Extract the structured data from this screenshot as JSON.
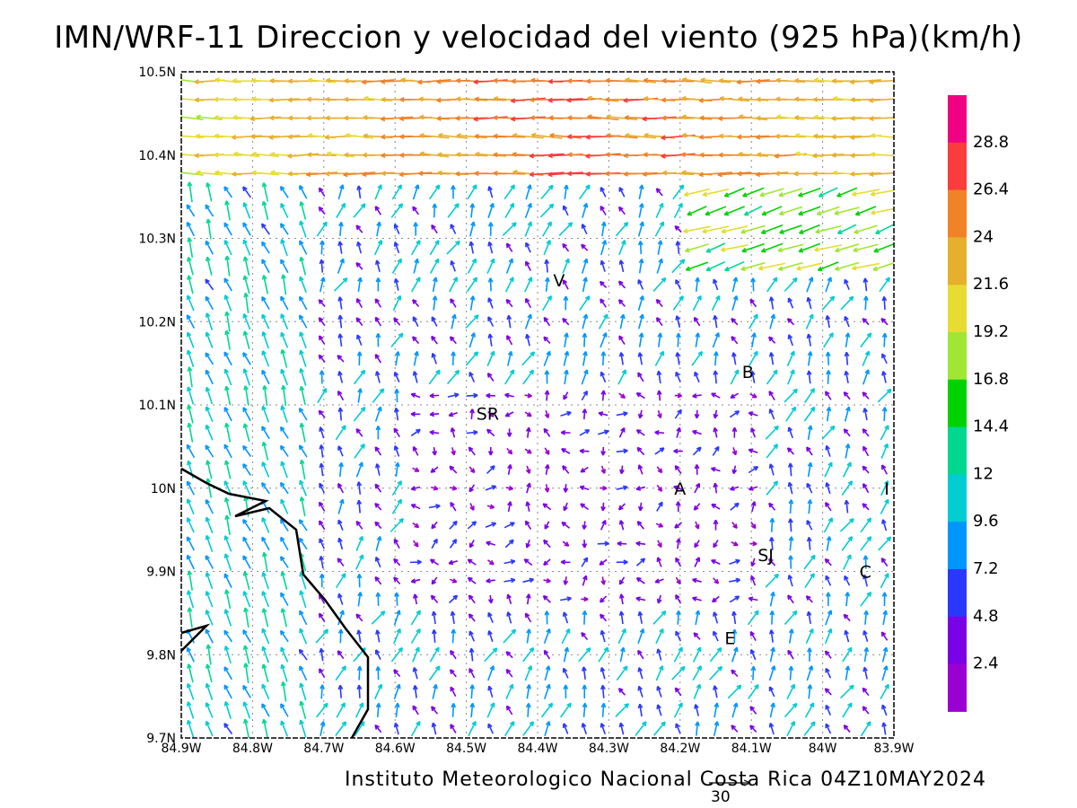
{
  "title": "IMN/WRF-11 Direccion y velocidad del viento (925 hPa)(km/h)",
  "footer": "Instituto Meteorologico Nacional Costa Rica 04Z10MAY2024",
  "reference_vector_label": "30",
  "map": {
    "lon_range": [
      -84.9,
      -83.9
    ],
    "lat_range": [
      9.7,
      10.5
    ],
    "lon_ticks": [
      "84.9W",
      "84.8W",
      "84.7W",
      "84.6W",
      "84.5W",
      "84.4W",
      "84.3W",
      "84.2W",
      "84.1W",
      "84W",
      "83.9W"
    ],
    "lat_ticks": [
      "10.5N",
      "10.4N",
      "10.3N",
      "10.2N",
      "10.1N",
      "10N",
      "9.9N",
      "9.8N",
      "9.7N"
    ],
    "grid": "dotted",
    "places": [
      {
        "label": "V",
        "lon": -84.37,
        "lat": 10.25
      },
      {
        "label": "B",
        "lon": -84.105,
        "lat": 10.14
      },
      {
        "label": "SR",
        "lon": -84.47,
        "lat": 10.09
      },
      {
        "label": "A",
        "lon": -84.2,
        "lat": 10.0
      },
      {
        "label": "SJ",
        "lon": -84.08,
        "lat": 9.92
      },
      {
        "label": "C",
        "lon": -83.94,
        "lat": 9.9
      },
      {
        "label": "E",
        "lon": -84.13,
        "lat": 9.82
      },
      {
        "label": "I",
        "lon": -83.91,
        "lat": 10.0
      }
    ]
  },
  "legend": {
    "labels": [
      "2.4",
      "4.8",
      "7.2",
      "9.6",
      "12",
      "14.4",
      "16.8",
      "19.2",
      "21.6",
      "24",
      "26.4",
      "28.8"
    ],
    "colors": [
      "#9b00d2",
      "#7a00e6",
      "#2a38ff",
      "#0096ff",
      "#00ccd2",
      "#00d890",
      "#00d200",
      "#a0e632",
      "#e6dc32",
      "#e6af2d",
      "#f08228",
      "#fa3c3c",
      "#f00082"
    ]
  }
}
